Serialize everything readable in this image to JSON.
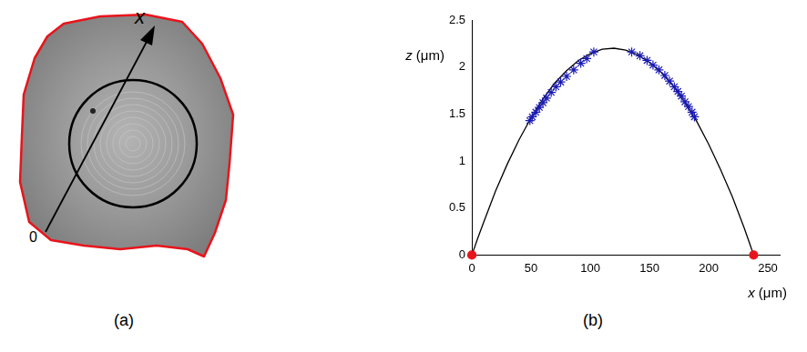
{
  "figure": {
    "a": {
      "label": "(a)",
      "arrow_label": "x",
      "origin_label": "0"
    },
    "b": {
      "label": "(b)"
    }
  },
  "chart_data": {
    "type": "scatter",
    "x_label": "x (μm)",
    "y_label": "z (μm)",
    "xlim": [
      0,
      260
    ],
    "xticks": [
      0,
      50,
      100,
      150,
      200,
      250
    ],
    "ylim": [
      0,
      2.5
    ],
    "yticks": [
      0,
      0.5,
      1,
      1.5,
      2,
      2.5
    ],
    "grid": false,
    "series": [
      {
        "type": "line",
        "color": "#000000",
        "marker": "none",
        "line_style": "solid",
        "x": [
          0,
          5,
          10,
          20,
          30,
          40,
          50,
          60,
          70,
          80,
          90,
          100,
          110,
          120,
          130,
          140,
          150,
          160,
          170,
          180,
          190,
          200,
          210,
          220,
          230,
          235,
          238
        ],
        "values": [
          0,
          0.18,
          0.35,
          0.68,
          0.97,
          1.23,
          1.46,
          1.66,
          1.83,
          1.96,
          2.07,
          2.14,
          2.19,
          2.2,
          2.18,
          2.13,
          2.05,
          1.94,
          1.8,
          1.62,
          1.42,
          1.18,
          0.91,
          0.62,
          0.29,
          0.11,
          0
        ]
      },
      {
        "type": "scatter",
        "color": "#1a1ab4",
        "marker": "asterisk",
        "x": [
          49,
          51,
          54,
          57,
          60,
          63,
          67,
          71,
          75,
          80,
          86,
          92,
          97,
          103,
          135,
          142,
          148,
          153,
          158,
          163,
          167,
          171,
          174,
          177,
          180,
          183,
          186,
          188
        ],
        "values": [
          1.43,
          1.47,
          1.52,
          1.57,
          1.62,
          1.67,
          1.73,
          1.79,
          1.84,
          1.9,
          1.97,
          2.04,
          2.09,
          2.16,
          2.16,
          2.12,
          2.07,
          2.02,
          1.97,
          1.91,
          1.85,
          1.79,
          1.74,
          1.69,
          1.63,
          1.58,
          1.52,
          1.47
        ]
      },
      {
        "type": "scatter",
        "color": "#e8141b",
        "marker": "circle",
        "x": [
          0,
          238
        ],
        "values": [
          0,
          0
        ]
      }
    ]
  }
}
